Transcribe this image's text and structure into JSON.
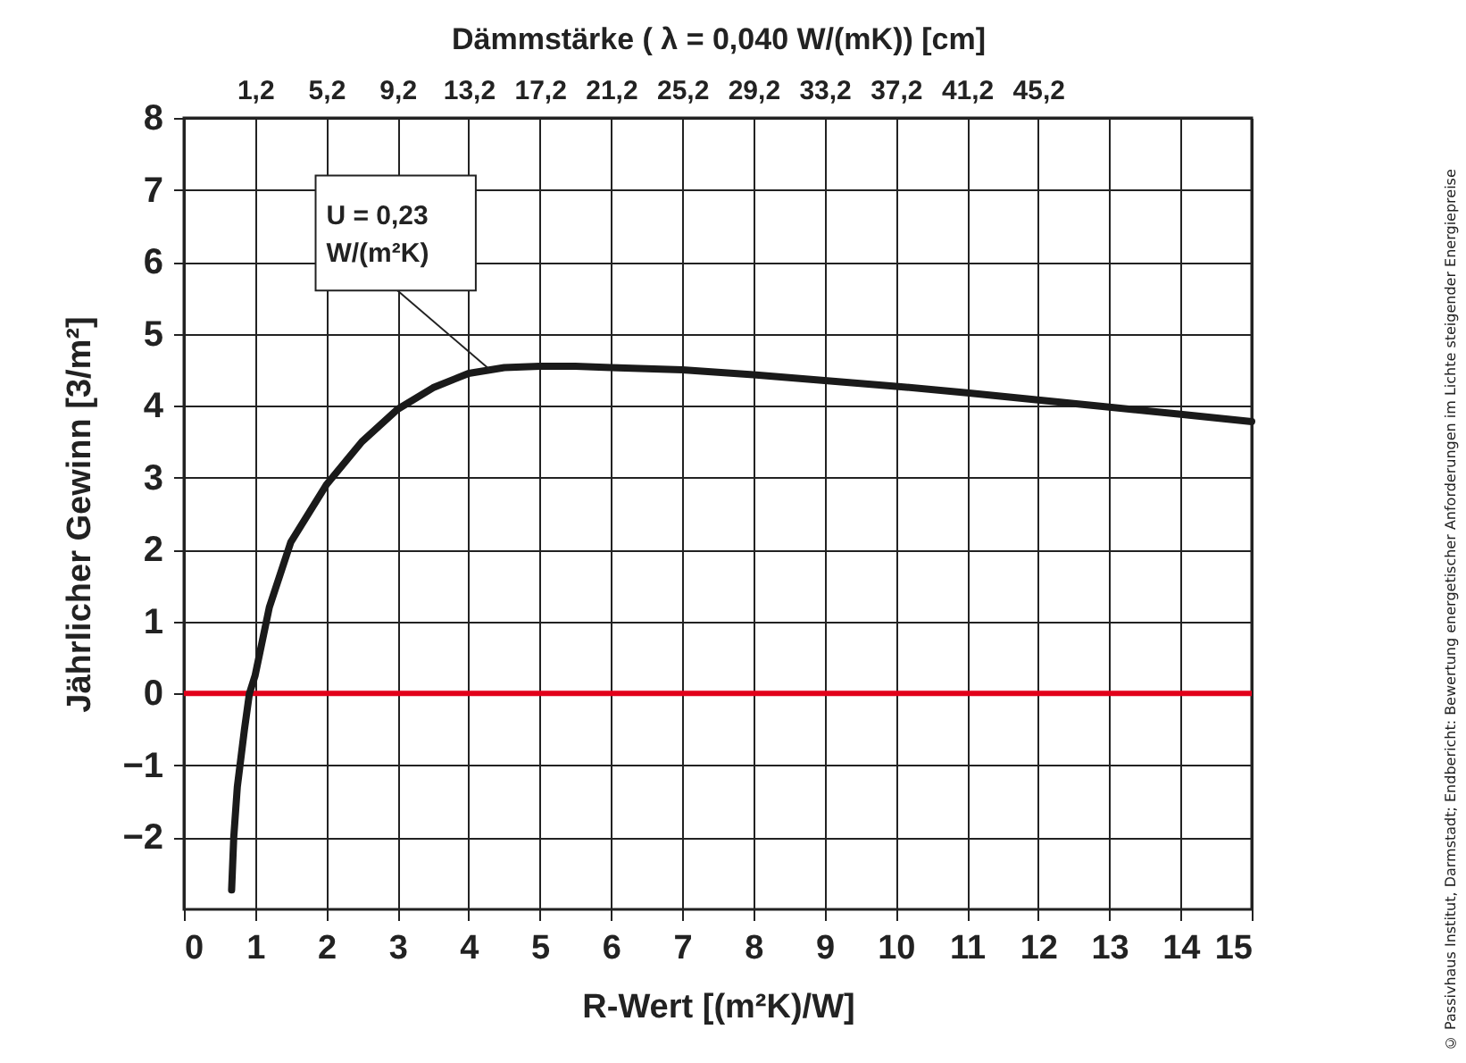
{
  "chart_data": {
    "type": "line",
    "xlabel": "R-Wert [(m²K)/W]",
    "ylabel": "Jährlicher Gewinn [3/m²]",
    "x2label": "Dämmstärke (  λ = 0,040 W/(mK)) [cm]",
    "xlim": [
      0,
      15
    ],
    "xticks": [
      0,
      1,
      2,
      3,
      4,
      5,
      6,
      7,
      8,
      9,
      10,
      11,
      12,
      13,
      14,
      15
    ],
    "x2lim": [
      -2.8,
      57.2
    ],
    "x2ticks": [
      {
        "value": 1.2,
        "label": "1,2"
      },
      {
        "value": 5.2,
        "label": "5,2"
      },
      {
        "value": 9.2,
        "label": "9,2"
      },
      {
        "value": 13.2,
        "label": "13,2"
      },
      {
        "value": 17.2,
        "label": "17,2"
      },
      {
        "value": 21.2,
        "label": "21,2"
      },
      {
        "value": 25.2,
        "label": "25,2"
      },
      {
        "value": 29.2,
        "label": "29,2"
      },
      {
        "value": 33.2,
        "label": "33,2"
      },
      {
        "value": 37.2,
        "label": "37,2"
      },
      {
        "value": 41.2,
        "label": "41,2"
      },
      {
        "value": 45.2,
        "label": "45,2"
      }
    ],
    "ylim": [
      -3,
      8
    ],
    "yticks": [
      -2,
      -1,
      0,
      1,
      2,
      3,
      4,
      5,
      6,
      7,
      8
    ],
    "grid": true,
    "marker": "none",
    "line_style": "solid",
    "series": [
      {
        "color": "#1a1a1a",
        "x": [
          0.67,
          0.7,
          0.75,
          0.85,
          0.92,
          1.0,
          1.2,
          1.5,
          2,
          2.5,
          3,
          3.5,
          4,
          4.5,
          5,
          5.5,
          6,
          7,
          8,
          9,
          10,
          11,
          12,
          13,
          14,
          15
        ],
        "values": [
          -2.73,
          -2,
          -1.3,
          -0.5,
          0,
          0.25,
          1.2,
          2.1,
          2.9,
          3.5,
          3.95,
          4.25,
          4.45,
          4.53,
          4.55,
          4.55,
          4.53,
          4.5,
          4.43,
          4.35,
          4.27,
          4.18,
          4.08,
          3.98,
          3.88,
          3.78
        ]
      }
    ],
    "ref_lines": [
      {
        "axis": "y",
        "value": 0,
        "color": "#e2001a"
      }
    ],
    "annotations": [
      {
        "text": "U = 0,23 W/(m²K)",
        "x": 4.3,
        "y": 4.5
      },
      "© Passivhaus Institut, Darmstadt; Endbericht: Bewertung energetischer Anforderungen im Lichte steigender Energiepreise"
    ]
  }
}
